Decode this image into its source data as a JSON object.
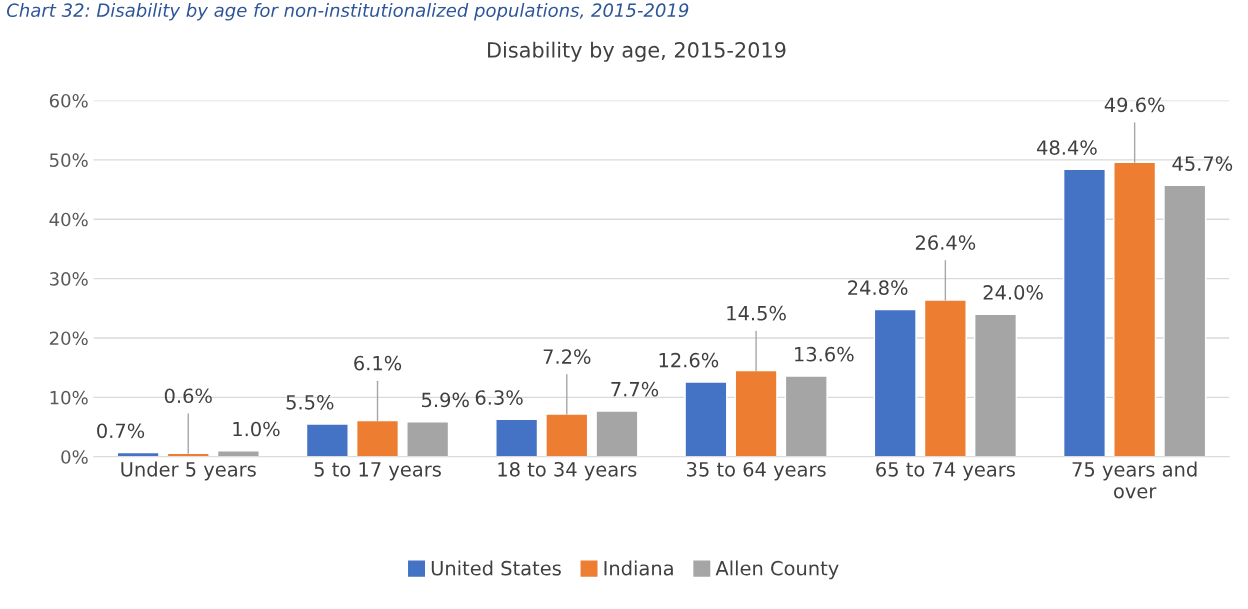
{
  "chart_data": {
    "type": "bar",
    "title": "Disability by age, 2015-2019",
    "annotations": [
      "Chart 32: Disability by age for non-institutionalized populations, 2015-2019"
    ],
    "categories": [
      "Under 5 years",
      "5 to 17 years",
      "18 to 34 years",
      "35 to 64 years",
      "65 to 74 years",
      "75 years and\nover"
    ],
    "series": [
      {
        "name": "United States",
        "color": "#4472c4",
        "values": [
          0.7,
          5.5,
          6.3,
          12.6,
          24.8,
          48.4
        ],
        "value_labels": [
          "0.7%",
          "5.5%",
          "6.3%",
          "12.6%",
          "24.8%",
          "48.4%"
        ]
      },
      {
        "name": "Indiana",
        "color": "#ed7d31",
        "values": [
          0.6,
          6.1,
          7.2,
          14.5,
          26.4,
          49.6
        ],
        "value_labels": [
          "0.6%",
          "6.1%",
          "7.2%",
          "14.5%",
          "26.4%",
          "49.6%"
        ]
      },
      {
        "name": "Allen County",
        "color": "#a5a5a5",
        "values": [
          1.0,
          5.9,
          7.7,
          13.6,
          24.0,
          45.7
        ],
        "value_labels": [
          "1.0%",
          "5.9%",
          "7.7%",
          "13.6%",
          "24.0%",
          "45.7%"
        ]
      }
    ],
    "ylim": [
      0,
      60
    ],
    "yticks": [
      {
        "value": 0,
        "label": "0%"
      },
      {
        "value": 10,
        "label": "10%"
      },
      {
        "value": 20,
        "label": "20%"
      },
      {
        "value": 30,
        "label": "30%"
      },
      {
        "value": 40,
        "label": "40%"
      },
      {
        "value": 50,
        "label": "50%"
      },
      {
        "value": 60,
        "label": "60%"
      }
    ],
    "grid": "y",
    "legend": "bottom"
  }
}
